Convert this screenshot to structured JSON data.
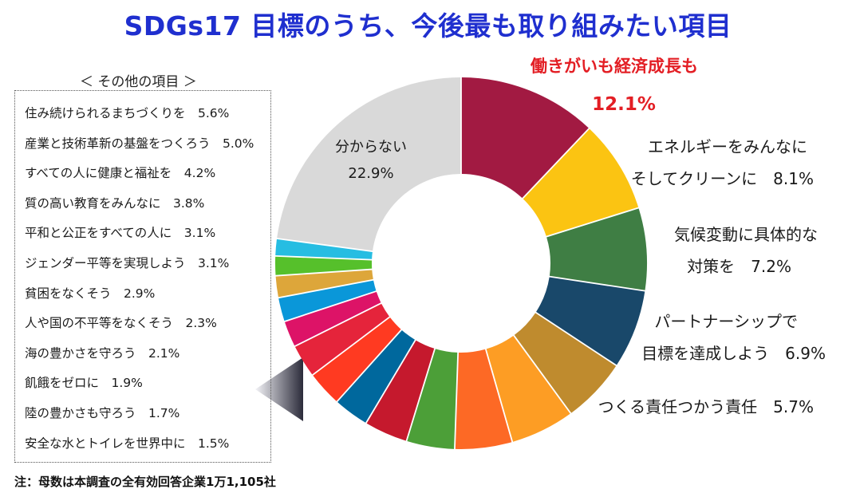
{
  "chart_data": {
    "type": "pie",
    "title": "SDGs17 目標のうち、今後最も取り組みたい項目",
    "slices": [
      {
        "name": "働きがいも経済成長も",
        "value_label": "12.1%",
        "value": 12.1,
        "color": "#a21a42"
      },
      {
        "name": "エネルギーをみんなに そしてクリーンに",
        "value_label": "8.1%",
        "value": 8.1,
        "color": "#fbc412"
      },
      {
        "name": "気候変動に具体的な 対策を",
        "value_label": "7.2%",
        "value": 7.2,
        "color": "#3f7e44"
      },
      {
        "name": "パートナーシップで 目標を達成しよう",
        "value_label": "6.9%",
        "value": 6.9,
        "color": "#19486a"
      },
      {
        "name": "つくる責任つかう責任",
        "value_label": "5.7%",
        "value": 5.7,
        "color": "#bf8b2e"
      },
      {
        "name": "住み続けられるまちづくりを",
        "value_label": "5.6%",
        "value": 5.6,
        "color": "#fd9d24"
      },
      {
        "name": "産業と技術革新の基盤をつくろう",
        "value_label": "5.0%",
        "value": 5.0,
        "color": "#fd6925"
      },
      {
        "name": "すべての人に健康と福祉を",
        "value_label": "4.2%",
        "value": 4.2,
        "color": "#4c9f38"
      },
      {
        "name": "質の高い教育をみんなに",
        "value_label": "3.8%",
        "value": 3.8,
        "color": "#c5192d"
      },
      {
        "name": "平和と公正をすべての人に",
        "value_label": "3.1%",
        "value": 3.1,
        "color": "#00689d"
      },
      {
        "name": "ジェンダー平等を実現しよう",
        "value_label": "3.1%",
        "value": 3.1,
        "color": "#ff3a21"
      },
      {
        "name": "貧困をなくそう",
        "value_label": "2.9%",
        "value": 2.9,
        "color": "#e5243b"
      },
      {
        "name": "人や国の不平等をなくそう",
        "value_label": "2.3%",
        "value": 2.3,
        "color": "#dd1367"
      },
      {
        "name": "海の豊かさを守ろう",
        "value_label": "2.1%",
        "value": 2.1,
        "color": "#0a97d9"
      },
      {
        "name": "飢餓をゼロに",
        "value_label": "1.9%",
        "value": 1.9,
        "color": "#dda63a"
      },
      {
        "name": "陸の豊かさも守ろう",
        "value_label": "1.7%",
        "value": 1.7,
        "color": "#56c02b"
      },
      {
        "name": "安全な水とトイレを世界中に",
        "value_label": "1.5%",
        "value": 1.5,
        "color": "#26bde2"
      },
      {
        "name": "分からない",
        "value_label": "22.9%",
        "value": 22.9,
        "color": "#d9d9d9"
      }
    ],
    "outside_labels": [
      {
        "line1": "働きがいも経済成長も",
        "line2": "12.1%",
        "color": "#e31e24"
      },
      {
        "line1": "エネルギーをみんなに",
        "line2": "そしてクリーンに　8.1%",
        "color": "#1a1a1a"
      },
      {
        "line1": "気候変動に具体的な",
        "line2": "対策を　7.2%",
        "color": "#1a1a1a"
      },
      {
        "line1": "パートナーシップで",
        "line2": "目標を達成しよう　6.9%",
        "color": "#1a1a1a"
      },
      {
        "line1": "つくる責任つかう責任　5.7%",
        "line2": "",
        "color": "#1a1a1a"
      }
    ],
    "center_label": {
      "line1": "分からない",
      "line2": "22.9%"
    }
  },
  "others": {
    "heading": "＜ その他の項目 ＞",
    "items": [
      "住み続けられるまちづくりを　5.6%",
      "産業と技術革新の基盤をつくろう　5.0%",
      "すべての人に健康と福祉を　4.2%",
      "質の高い教育をみんなに　3.8%",
      "平和と公正をすべての人に　3.1%",
      "ジェンダー平等を実現しよう　3.1%",
      "貧困をなくそう　2.9%",
      "人や国の不平等をなくそう　2.3%",
      "海の豊かさを守ろう　2.1%",
      "飢餓をゼロに　1.9%",
      "陸の豊かさも守ろう　1.7%",
      "安全な水とトイレを世界中に　1.5%"
    ]
  },
  "note": "注：母数は本調査の全有効回答企業1万1,105社"
}
